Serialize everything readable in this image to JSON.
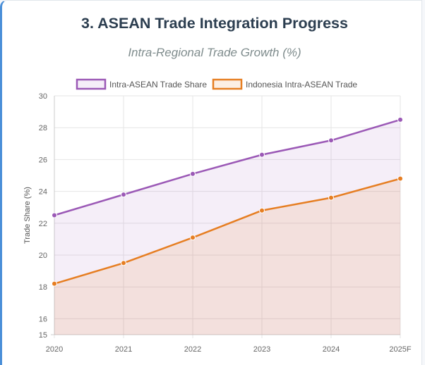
{
  "header": {
    "title": "3. ASEAN Trade Integration Progress",
    "subtitle": "Intra-Regional Trade Growth (%)"
  },
  "chart_data": {
    "type": "area",
    "title": "Intra-Regional Trade Growth (%)",
    "xlabel": "",
    "ylabel": "Trade Share (%)",
    "categories": [
      "2020",
      "2021",
      "2022",
      "2023",
      "2024",
      "2025F"
    ],
    "ylim": [
      15,
      30
    ],
    "yticks": [
      15,
      16,
      18,
      20,
      22,
      24,
      26,
      28,
      30
    ],
    "grid": true,
    "legend": "top-center",
    "series": [
      {
        "name": "Intra-ASEAN Trade Share",
        "values": [
          22.5,
          23.8,
          25.1,
          26.3,
          27.2,
          28.5
        ],
        "color": "#9b59b6",
        "fill": "rgba(155, 89, 182, 0.10)"
      },
      {
        "name": "Indonesia Intra-ASEAN Trade",
        "values": [
          18.2,
          19.5,
          21.1,
          22.8,
          23.6,
          24.8
        ],
        "color": "#e67e22",
        "fill": "rgba(230, 126, 34, 0.12)"
      }
    ]
  }
}
